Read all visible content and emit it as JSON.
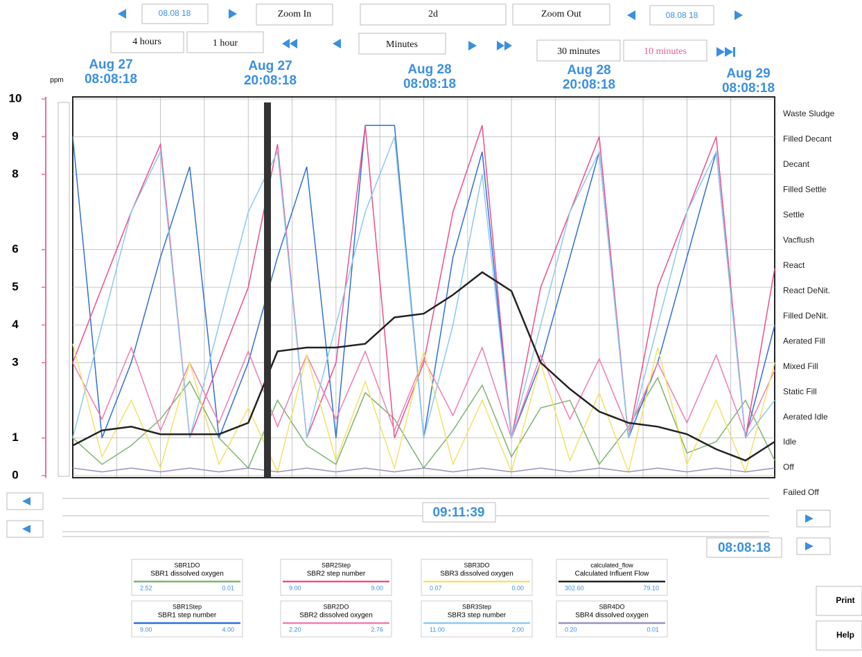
{
  "toolbar": {
    "date_left": "08.08 18",
    "zoom_in": "Zoom In",
    "range": "2d",
    "zoom_out": "Zoom Out",
    "date_right": "08.08 18",
    "spans": [
      "4 hours",
      "1 hour",
      "Minutes",
      "30 minutes",
      "10 minutes"
    ]
  },
  "chart_data": {
    "type": "line",
    "y_unit": "ppm",
    "ylim": [
      0,
      10
    ],
    "yticks": [
      0,
      1,
      3,
      4,
      5,
      6,
      8,
      9,
      10
    ],
    "grid": true,
    "xticks": [
      {
        "date": "Aug 27",
        "time": "08:08:18"
      },
      {
        "date": "Aug 27",
        "time": "20:08:18"
      },
      {
        "date": "Aug 28",
        "time": "08:08:18"
      },
      {
        "date": "Aug 28",
        "time": "20:08:18"
      },
      {
        "date": "Aug 29",
        "time": "08:08:18"
      }
    ],
    "step_labels": [
      "Waste Sludge",
      "Filled Decant",
      "Decant",
      "Filled Settle",
      "Settle",
      "Vacflush",
      "React",
      "React DeNit.",
      "Filled DeNit.",
      "Aerated Fill",
      "Mixed Fill",
      "Static Fill",
      "Aerated Idle",
      "Idle",
      "Off",
      "Failed Off"
    ],
    "series": [
      {
        "name": "SBR1DO",
        "description": "SBR1 dissolved oxygen",
        "readings": [
          "2.52",
          "0.01"
        ],
        "color": "#7fb36f",
        "values": [
          1.0,
          0.3,
          0.8,
          1.5,
          2.5,
          1.0,
          0.2,
          2.0,
          0.8,
          0.3,
          2.2,
          1.5,
          0.2,
          1.2,
          2.4,
          0.5,
          1.8,
          2.0,
          0.3,
          1.3,
          2.6,
          0.6,
          0.9,
          2.0,
          0.4
        ]
      },
      {
        "name": "SBR1Step",
        "description": "SBR1 step number",
        "readings": [
          "9.00",
          "4.00"
        ],
        "color": "#2f6fd6",
        "values": [
          9.0,
          1.0,
          3.0,
          5.8,
          8.2,
          1.0,
          3.0,
          5.8,
          8.2,
          1.0,
          9.3,
          9.3,
          1.0,
          5.8,
          8.6,
          1.0,
          3.0,
          5.8,
          8.6,
          1.0,
          3.0,
          5.8,
          8.6,
          1.0,
          4.0
        ]
      },
      {
        "name": "SBR2Step",
        "description": "SBR2 step number",
        "readings": [
          "9.00",
          "9.00"
        ],
        "color": "#ee4f8a",
        "values": [
          3.0,
          5.0,
          7.0,
          8.8,
          1.0,
          3.0,
          5.0,
          8.8,
          1.0,
          3.0,
          9.3,
          1.0,
          3.0,
          7.0,
          9.3,
          1.0,
          5.0,
          7.0,
          9.0,
          1.0,
          5.0,
          7.0,
          9.0,
          1.0,
          5.5
        ]
      },
      {
        "name": "SBR2DO",
        "description": "SBR2 dissolved oxygen",
        "readings": [
          "2.20",
          "2.76"
        ],
        "color": "#f27bb2",
        "values": [
          3.0,
          1.5,
          3.4,
          1.2,
          3.0,
          1.4,
          3.3,
          1.3,
          3.2,
          1.5,
          3.3,
          1.2,
          3.1,
          1.6,
          3.4,
          1.0,
          3.2,
          1.5,
          3.1,
          1.2,
          3.0,
          1.4,
          3.2,
          1.1,
          2.8
        ]
      },
      {
        "name": "SBR3DO",
        "description": "SBR3 dissolved oxygen",
        "readings": [
          "0.07",
          "0.00"
        ],
        "color": "#f2e26a",
        "values": [
          3.5,
          0.5,
          2.0,
          0.2,
          3.0,
          0.3,
          1.8,
          0.1,
          3.2,
          0.4,
          2.5,
          0.2,
          3.3,
          0.3,
          2.0,
          0.1,
          3.0,
          0.4,
          2.2,
          0.1,
          3.4,
          0.3,
          2.0,
          0.1,
          3.0
        ]
      },
      {
        "name": "SBR3Step",
        "description": "SBR3 step number",
        "readings": [
          "11.00",
          "2.00"
        ],
        "color": "#8cc8ee",
        "values": [
          1.0,
          4.0,
          7.0,
          8.6,
          1.0,
          4.0,
          7.0,
          8.6,
          1.0,
          4.0,
          7.0,
          9.0,
          1.0,
          4.0,
          8.0,
          1.0,
          4.0,
          7.0,
          8.6,
          1.0,
          4.0,
          7.0,
          8.6,
          1.0,
          2.0
        ]
      },
      {
        "name": "calculated_flow",
        "description": "Calculated Influent Flow",
        "readings": [
          "302.60",
          "79.10"
        ],
        "color": "#222222",
        "values": [
          0.8,
          1.2,
          1.3,
          1.1,
          1.1,
          1.1,
          1.4,
          3.3,
          3.4,
          3.4,
          3.5,
          4.2,
          4.3,
          4.8,
          5.4,
          4.9,
          3.0,
          2.3,
          1.7,
          1.4,
          1.3,
          1.1,
          0.7,
          0.4,
          0.9
        ]
      },
      {
        "name": "SBR4DO",
        "description": "SBR4 dissolved oxygen",
        "readings": [
          "0.20",
          "0.01"
        ],
        "color": "#9a8fc0",
        "values": [
          0.2,
          0.1,
          0.2,
          0.1,
          0.2,
          0.1,
          0.2,
          0.1,
          0.2,
          0.1,
          0.2,
          0.1,
          0.2,
          0.1,
          0.2,
          0.1,
          0.2,
          0.1,
          0.2,
          0.1,
          0.2,
          0.1,
          0.2,
          0.1,
          0.2
        ]
      }
    ]
  },
  "scrollbar": {
    "time": "09:11:39",
    "date": "08:08:18"
  },
  "buttons": [
    "Print",
    "Help"
  ]
}
